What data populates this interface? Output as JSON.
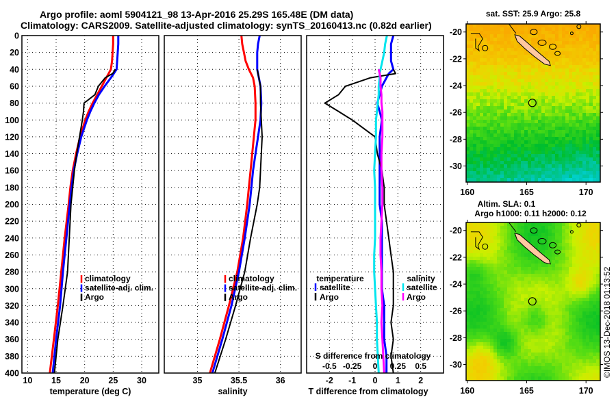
{
  "header": {
    "line1": "Argo profile: aoml 5904121_98 13-Apr-2016 25.29S 165.48E (DM data)",
    "line2": "Climatology: CARS2009. Satellite-adjusted climatology: synTS_20160413.nc (0.82d earlier)"
  },
  "credit": "©IMOS 13-Dec-2018 01:13:52",
  "colors": {
    "climatology": "#ff0000",
    "satellite_adj": "#0000ff",
    "argo": "#000000",
    "s_satellite": "#00e5ee",
    "s_argo": "#ff00ff"
  },
  "chart_data": [
    {
      "type": "line",
      "id": "temperature",
      "xlabel": "temperature (deg C)",
      "ylabel": "",
      "xlim": [
        9,
        33
      ],
      "ylim": [
        400,
        0
      ],
      "xticks": [
        10,
        15,
        20,
        25,
        30
      ],
      "yticks": [
        0,
        20,
        40,
        60,
        80,
        100,
        120,
        140,
        160,
        180,
        200,
        220,
        240,
        260,
        280,
        300,
        320,
        340,
        360,
        380,
        400
      ],
      "grid": true,
      "legend": {
        "placement": "lower-right",
        "entries": [
          "climatology",
          "satellite-adj. clim.",
          "Argo"
        ]
      },
      "depth": [
        0,
        10,
        20,
        30,
        40,
        45,
        50,
        60,
        70,
        80,
        90,
        100,
        120,
        140,
        160,
        180,
        200,
        240,
        280,
        320,
        360,
        400
      ],
      "series": [
        {
          "name": "climatology",
          "color_key": "climatology",
          "values": [
            25.0,
            25.0,
            24.9,
            24.8,
            24.6,
            24.2,
            23.8,
            23.0,
            22.2,
            21.4,
            20.7,
            20.1,
            19.2,
            18.5,
            17.9,
            17.5,
            17.2,
            16.5,
            15.9,
            15.3,
            14.6,
            13.9
          ]
        },
        {
          "name": "satellite-adj. clim.",
          "color_key": "satellite_adj",
          "values": [
            25.9,
            25.9,
            25.8,
            25.7,
            25.6,
            25.1,
            24.6,
            23.5,
            22.5,
            21.7,
            21.0,
            20.4,
            19.4,
            18.7,
            18.1,
            17.7,
            17.4,
            16.8,
            16.2,
            15.7,
            15.0,
            14.4
          ]
        },
        {
          "name": "Argo",
          "color_key": "argo",
          "values": [
            null,
            null,
            null,
            null,
            25.4,
            24.9,
            23.6,
            22.4,
            21.8,
            19.9,
            19.8,
            19.6,
            19.1,
            18.6,
            18.2,
            17.9,
            17.6,
            17.3,
            17.0,
            16.2,
            15.3,
            14.7
          ]
        }
      ]
    },
    {
      "type": "line",
      "id": "salinity",
      "xlabel": "salinity",
      "ylabel": "",
      "xlim": [
        34.6,
        36.25
      ],
      "ylim": [
        400,
        0
      ],
      "xticks": [
        35,
        35.5,
        36
      ],
      "xtick_labels": [
        "35",
        "35.5",
        "36"
      ],
      "grid": true,
      "legend": {
        "placement": "lower-right",
        "entries": [
          "climatology",
          "satellite-adj. clim.",
          "Argo"
        ]
      },
      "depth": [
        0,
        10,
        20,
        30,
        40,
        50,
        60,
        80,
        100,
        120,
        140,
        160,
        180,
        200,
        240,
        280,
        320,
        360,
        400
      ],
      "series": [
        {
          "name": "climatology",
          "color_key": "climatology",
          "values": [
            35.53,
            35.54,
            35.56,
            35.58,
            35.62,
            35.67,
            35.69,
            35.7,
            35.7,
            35.68,
            35.66,
            35.64,
            35.62,
            35.6,
            35.55,
            35.48,
            35.38,
            35.27,
            35.15
          ]
        },
        {
          "name": "satellite-adj. clim.",
          "color_key": "satellite_adj",
          "values": [
            35.75,
            35.73,
            35.72,
            35.72,
            35.72,
            35.74,
            35.76,
            35.77,
            35.76,
            35.73,
            35.7,
            35.67,
            35.65,
            35.63,
            35.57,
            35.5,
            35.41,
            35.3,
            35.18
          ]
        },
        {
          "name": "Argo",
          "color_key": "argo",
          "values": [
            null,
            null,
            null,
            null,
            35.72,
            35.74,
            35.76,
            35.76,
            35.77,
            35.78,
            35.77,
            35.76,
            35.75,
            35.72,
            35.64,
            35.57,
            35.46,
            35.34,
            35.21
          ]
        }
      ]
    },
    {
      "type": "line",
      "id": "difference",
      "xlabel": "T difference from climatology",
      "xlabel2": "S difference from climatology",
      "ylabel": "",
      "xlim": [
        -3,
        3
      ],
      "ylim": [
        400,
        0
      ],
      "xticks": [
        -2,
        -1,
        0,
        1,
        2
      ],
      "x2lim": [
        -0.75,
        0.75
      ],
      "x2ticks": [
        -0.5,
        -0.25,
        0,
        0.25,
        0.5
      ],
      "x2tick_labels": [
        "-0.5",
        "-0.25",
        "0",
        "0.25",
        "0.5"
      ],
      "grid": true,
      "legend": {
        "placement": "lower-center",
        "temperature": {
          "title": "temperature",
          "entries": [
            "satellite",
            "Argo"
          ]
        },
        "salinity": {
          "title": "salinity",
          "entries": [
            "satellite",
            "Argo"
          ]
        }
      },
      "depth": [
        0,
        10,
        20,
        30,
        40,
        45,
        50,
        60,
        70,
        80,
        90,
        100,
        120,
        140,
        160,
        180,
        200,
        220,
        240,
        260,
        280,
        300,
        320,
        340,
        360,
        380,
        400
      ],
      "series": [
        {
          "name": "temperature satellite",
          "axis": "T",
          "color_key": "satellite_adj",
          "values": [
            0.8,
            0.7,
            0.7,
            0.7,
            0.8,
            0.6,
            0.5,
            0.3,
            0.2,
            0.1,
            0.2,
            0.3,
            0.2,
            0.2,
            0.2,
            0.2,
            0.2,
            0.3,
            0.3,
            0.3,
            0.3,
            0.3,
            0.4,
            0.4,
            0.4,
            0.5,
            0.5
          ]
        },
        {
          "name": "temperature Argo",
          "axis": "T",
          "color_key": "argo",
          "values": [
            null,
            null,
            null,
            null,
            0.8,
            0.9,
            -0.2,
            -1.3,
            -1.6,
            -2.2,
            -1.6,
            -1.0,
            0.0,
            0.1,
            0.3,
            0.4,
            0.4,
            0.5,
            0.6,
            0.7,
            0.8,
            0.8,
            0.8,
            0.7,
            0.8,
            0.7,
            0.8
          ]
        },
        {
          "name": "salinity satellite",
          "axis": "S",
          "color_key": "s_satellite",
          "values": [
            0.13,
            0.11,
            0.1,
            0.08,
            0.06,
            0.05,
            0.05,
            0.04,
            0.04,
            0.03,
            0.02,
            0.01,
            0.01,
            0.0,
            -0.01,
            0.0,
            0.0,
            0.0,
            0.0,
            -0.01,
            -0.01,
            0.0,
            0.01,
            0.02,
            0.02,
            0.03,
            0.04
          ]
        },
        {
          "name": "salinity Argo",
          "axis": "S",
          "color_key": "s_argo",
          "values": [
            null,
            null,
            null,
            null,
            0.04,
            0.05,
            0.06,
            0.06,
            0.07,
            0.07,
            0.08,
            0.08,
            0.08,
            0.07,
            0.07,
            0.08,
            0.08,
            0.07,
            0.06,
            0.06,
            0.07,
            0.07,
            0.08,
            0.07,
            0.08,
            0.09,
            0.1
          ]
        }
      ]
    },
    {
      "type": "heatmap",
      "id": "sst-map",
      "title": "sat. SST: 25.9 Argo: 25.8",
      "xlim": [
        159.9,
        171.2
      ],
      "ylim": [
        -31.2,
        -19.4
      ],
      "xticks": [
        160,
        165,
        170
      ],
      "yticks": [
        -20,
        -22,
        -24,
        -26,
        -28,
        -30
      ],
      "marker": {
        "lon": 165.48,
        "lat": -25.29
      }
    },
    {
      "type": "heatmap",
      "id": "sla-map",
      "title": "Altim. SLA: 0.1",
      "subtitle": "Argo h1000: 0.11 h2000: 0.12",
      "xlim": [
        159.9,
        171.2
      ],
      "ylim": [
        -31.2,
        -19.4
      ],
      "xticks": [
        160,
        165,
        170
      ],
      "yticks": [
        -20,
        -22,
        -24,
        -26,
        -28,
        -30
      ],
      "marker": {
        "lon": 165.48,
        "lat": -25.29
      }
    }
  ]
}
